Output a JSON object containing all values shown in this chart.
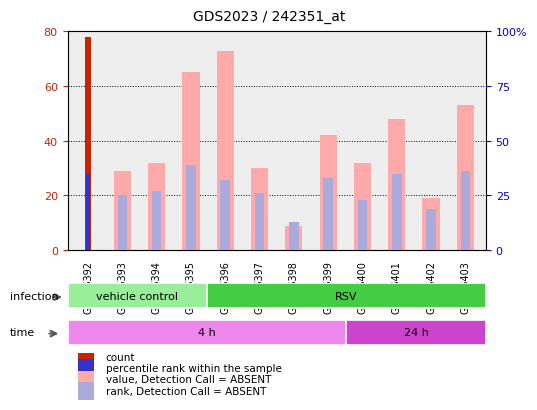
{
  "title": "GDS2023 / 242351_at",
  "samples": [
    "GSM76392",
    "GSM76393",
    "GSM76394",
    "GSM76395",
    "GSM76396",
    "GSM76397",
    "GSM76398",
    "GSM76399",
    "GSM76400",
    "GSM76401",
    "GSM76402",
    "GSM76403"
  ],
  "count_values": [
    78,
    0,
    0,
    0,
    0,
    0,
    0,
    0,
    0,
    0,
    0,
    0
  ],
  "percentile_rank": [
    35,
    0,
    0,
    0,
    0,
    0,
    0,
    0,
    0,
    0,
    0,
    0
  ],
  "value_absent": [
    0,
    29,
    32,
    65,
    73,
    30,
    9,
    42,
    32,
    48,
    19,
    53
  ],
  "rank_absent": [
    0,
    25,
    27,
    39,
    32,
    26,
    13,
    33,
    23,
    35,
    19,
    36
  ],
  "ylim_left": [
    0,
    80
  ],
  "ylim_right": [
    0,
    100
  ],
  "yticks_left": [
    0,
    20,
    40,
    60,
    80
  ],
  "ytick_labels_right": [
    "0",
    "25",
    "50",
    "75",
    "100%"
  ],
  "infection_labels": [
    {
      "label": "vehicle control",
      "start": 0,
      "end": 4,
      "color": "#99ee99"
    },
    {
      "label": "RSV",
      "start": 4,
      "end": 12,
      "color": "#44cc44"
    }
  ],
  "time_labels": [
    {
      "label": "4 h",
      "start": 0,
      "end": 8,
      "color": "#ee88ee"
    },
    {
      "label": "24 h",
      "start": 8,
      "end": 12,
      "color": "#cc44cc"
    }
  ],
  "legend_items": [
    {
      "label": "count",
      "color": "#cc2200"
    },
    {
      "label": "percentile rank within the sample",
      "color": "#3333cc"
    },
    {
      "label": "value, Detection Call = ABSENT",
      "color": "#ffaaaa"
    },
    {
      "label": "rank, Detection Call = ABSENT",
      "color": "#aaaadd"
    }
  ],
  "count_color": "#cc2200",
  "rank_color": "#3333cc",
  "value_absent_color": "#ffaaaa",
  "rank_absent_color": "#aaaadd",
  "axis_color_left": "#cc2200",
  "axis_color_right": "#0000cc",
  "bg_color": "#ffffff",
  "plot_bg_color": "#eeeeee"
}
